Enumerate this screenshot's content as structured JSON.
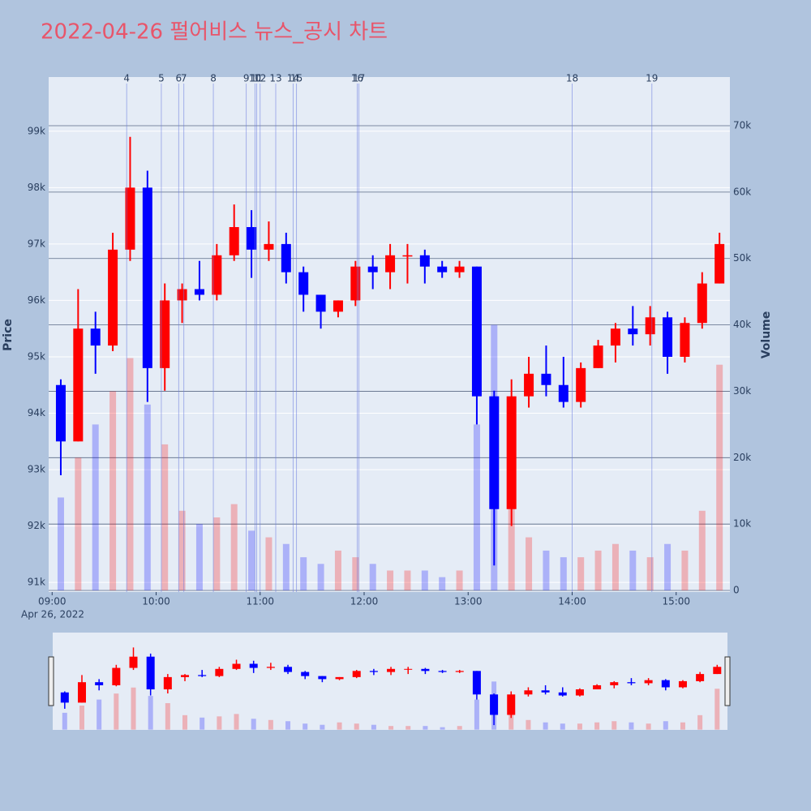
{
  "chart_data": {
    "type": "candlestick",
    "title": "2022-04-26 펄어비스 뉴스_공시 차트",
    "y_title": "Price",
    "y2_title": "Volume",
    "x_date": "Apr 26, 2022",
    "up_color": "#ff0000",
    "down_color": "#0000ff",
    "x": [
      "09:05",
      "09:15",
      "09:25",
      "09:35",
      "09:45",
      "09:55",
      "10:05",
      "10:15",
      "10:25",
      "10:35",
      "10:45",
      "10:55",
      "11:05",
      "11:15",
      "11:25",
      "11:35",
      "11:45",
      "11:55",
      "12:05",
      "12:15",
      "12:25",
      "12:35",
      "12:45",
      "12:55",
      "13:05",
      "13:15",
      "13:25",
      "13:35",
      "13:45",
      "13:55",
      "14:05",
      "14:15",
      "14:25",
      "14:35",
      "14:45",
      "14:55",
      "15:05",
      "15:15",
      "15:25"
    ],
    "open": [
      94500,
      93500,
      95500,
      95200,
      96900,
      98000,
      94800,
      96000,
      96200,
      96100,
      96800,
      97300,
      96900,
      97000,
      96500,
      96100,
      95800,
      96000,
      96600,
      96500,
      96800,
      96800,
      96600,
      96500,
      96600,
      94300,
      92300,
      94300,
      94700,
      94500,
      94200,
      94800,
      95200,
      95500,
      95400,
      95700,
      95000,
      95600,
      96300
    ],
    "high": [
      94600,
      96200,
      95800,
      97200,
      98900,
      98300,
      96300,
      96300,
      96700,
      97000,
      97700,
      97600,
      97400,
      97200,
      96600,
      96100,
      96000,
      96700,
      96800,
      97000,
      97000,
      96900,
      96700,
      96700,
      96600,
      94400,
      94600,
      95000,
      95200,
      95000,
      94900,
      95300,
      95600,
      95900,
      95900,
      95800,
      95700,
      96500,
      97200
    ],
    "low": [
      92900,
      93500,
      94700,
      95100,
      96700,
      94200,
      94400,
      95600,
      96000,
      96000,
      96700,
      96400,
      96700,
      96300,
      95800,
      95500,
      95700,
      95900,
      96200,
      96200,
      96300,
      96300,
      96400,
      96400,
      93800,
      91300,
      92000,
      94100,
      94300,
      94100,
      94100,
      94800,
      94900,
      95200,
      95200,
      94700,
      94900,
      95500,
      96300
    ],
    "close": [
      93500,
      95500,
      95200,
      96900,
      98000,
      94800,
      96000,
      96200,
      96100,
      96800,
      97300,
      96900,
      97000,
      96500,
      96100,
      95800,
      96000,
      96600,
      96500,
      96800,
      96800,
      96600,
      96500,
      96600,
      94300,
      92300,
      94300,
      94700,
      94500,
      94200,
      94800,
      95200,
      95500,
      95400,
      95700,
      95000,
      95600,
      96300,
      97000
    ],
    "volume": {
      "name": "Volume",
      "axis": "y2",
      "values": [
        14000,
        20000,
        25000,
        30000,
        35000,
        28000,
        22000,
        12000,
        10000,
        11000,
        13000,
        9000,
        8000,
        7000,
        5000,
        4000,
        6000,
        5000,
        4000,
        3000,
        3000,
        3000,
        2000,
        3000,
        25000,
        40000,
        16000,
        8000,
        6000,
        5000,
        5000,
        6000,
        7000,
        6000,
        5000,
        7000,
        6000,
        12000,
        34000
      ]
    },
    "news": {
      "x": [
        "09:43",
        "10:03",
        "10:13",
        "10:16",
        "10:33",
        "10:52",
        "10:57",
        "10:58",
        "11:00",
        "11:09",
        "11:19",
        "11:21",
        "11:56",
        "11:57",
        "14:00",
        "14:46"
      ],
      "labels": [
        "4",
        "5",
        "6",
        "7",
        "8",
        "9",
        "10",
        "11",
        "12",
        "13",
        "14",
        "15",
        "16",
        "17",
        "18",
        "19"
      ]
    },
    "xlim": [
      "08:58",
      "15:31"
    ],
    "xticks": [
      "09:00",
      "10:00",
      "11:00",
      "12:00",
      "13:00",
      "14:00",
      "15:00"
    ],
    "ylim": [
      90830,
      99960
    ],
    "yticks": [
      {
        "value": 91000,
        "label": "91k"
      },
      {
        "value": 92000,
        "label": "92k"
      },
      {
        "value": 93000,
        "label": "93k"
      },
      {
        "value": 94000,
        "label": "94k"
      },
      {
        "value": 95000,
        "label": "95k"
      },
      {
        "value": 96000,
        "label": "96k"
      },
      {
        "value": 97000,
        "label": "97k"
      },
      {
        "value": 98000,
        "label": "98k"
      },
      {
        "value": 99000,
        "label": "99k"
      }
    ],
    "y2lim": [
      -240,
      77330
    ],
    "y2ticks": [
      0,
      {
        "value": 10000,
        "label": "10k"
      },
      {
        "value": 20000,
        "label": "20k"
      },
      {
        "value": 30000,
        "label": "30k"
      },
      {
        "value": 40000,
        "label": "40k"
      },
      {
        "value": 50000,
        "label": "50k"
      },
      {
        "value": 60000,
        "label": "60k"
      },
      {
        "value": 70000,
        "label": "70k"
      }
    ],
    "grid": true
  }
}
